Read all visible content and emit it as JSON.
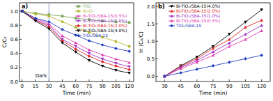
{
  "chart_data": [
    {
      "type": "line",
      "title": "a)",
      "xlabel": "Time (min)",
      "ylabel": "C/C₀",
      "x": [
        0,
        15,
        30,
        45,
        60,
        75,
        90,
        105,
        120
      ],
      "xlim": [
        -3,
        125
      ],
      "xticks": [
        0,
        15,
        30,
        45,
        60,
        75,
        90,
        105,
        120
      ],
      "ylim": [
        0,
        1.12
      ],
      "yticks": [
        {
          "value": 0,
          "label": "0.0"
        },
        0.2,
        0.4,
        0.6,
        0.8,
        {
          "value": 1,
          "label": "1.0"
        }
      ],
      "legend": "upper right",
      "annotations": [
        {
          "text": "Dark",
          "x": 30
        }
      ],
      "series": [
        {
          "name": "TiO₂",
          "color": "#7fa860",
          "marker": "square",
          "line_style": "solid",
          "values": [
            1.0,
            0.97,
            0.95,
            0.93,
            0.9,
            0.88,
            0.86,
            0.85,
            0.84
          ]
        },
        {
          "name": "Bi₂O₃",
          "color": "#b5b832",
          "marker": "circle",
          "line_style": "solid",
          "values": [
            1.0,
            0.96,
            0.93,
            0.85,
            0.77,
            0.7,
            0.63,
            0.57,
            0.5
          ]
        },
        {
          "name": "Bi-TiO₂/SBA-15(0.5%)",
          "color": "#e040b0",
          "marker": "triangle",
          "line_style": "solid",
          "values": [
            1.0,
            0.9,
            0.82,
            0.65,
            0.55,
            0.45,
            0.38,
            0.32,
            0.27
          ]
        },
        {
          "name": "Bi-TiO₂/SBA-15(1.0%)",
          "color": "#9b30c8",
          "marker": "triangle-down",
          "line_style": "solid",
          "values": [
            1.0,
            0.88,
            0.8,
            0.6,
            0.5,
            0.4,
            0.32,
            0.26,
            0.21
          ]
        },
        {
          "name": "Bi-TiO₂/SBA-15(2.0%)",
          "color": "#e02020",
          "marker": "diamond",
          "line_style": "solid",
          "values": [
            1.0,
            0.87,
            0.78,
            0.58,
            0.46,
            0.36,
            0.28,
            0.22,
            0.17
          ]
        },
        {
          "name": "Bi-TiO₂/SBA-15(4.0%)",
          "color": "#000000",
          "marker": "triangle-down",
          "line_style": "solid",
          "values": [
            1.0,
            0.86,
            0.75,
            0.55,
            0.42,
            0.3,
            0.22,
            0.16,
            0.12
          ]
        },
        {
          "name": "TiO₂/SBA-15",
          "color": "#1f3fbf",
          "marker": "diamond",
          "line_style": "solid",
          "values": [
            1.0,
            0.9,
            0.85,
            0.74,
            0.66,
            0.58,
            0.52,
            0.47,
            0.43
          ]
        }
      ]
    },
    {
      "type": "scatter",
      "title": "b)",
      "xlabel": "Time (min)",
      "ylabel": "ln (C₀/C)",
      "x": [
        30,
        45,
        60,
        75,
        90,
        105,
        120
      ],
      "xlim": [
        22,
        128
      ],
      "xticks": [
        30,
        45,
        60,
        75,
        90,
        105,
        120
      ],
      "ylim": [
        -0.15,
        2.1
      ],
      "yticks": [
        {
          "value": 0,
          "label": "0.0"
        },
        0.5,
        {
          "value": 1,
          "label": "1.0"
        },
        1.5,
        {
          "value": 2,
          "label": "2.0"
        }
      ],
      "legend": "upper left",
      "series": [
        {
          "name": "Bi-TiO₂/SBA-15(4.0%)",
          "color": "#000000",
          "marker": "triangle-down",
          "line_style": "solid",
          "values": [
            0,
            0.3,
            0.55,
            0.85,
            1.2,
            1.55,
            1.9
          ]
        },
        {
          "name": "Bi-TiO₂/SBA-15(2.0%)",
          "color": "#e02020",
          "marker": "triangle",
          "line_style": "solid",
          "values": [
            0,
            0.28,
            0.5,
            0.8,
            1.05,
            1.4,
            1.6
          ]
        },
        {
          "name": "Bi-TiO₂/SBA-15(1.0%)",
          "color": "#9b30c8",
          "marker": "triangle",
          "line_style": "solid",
          "values": [
            0,
            0.25,
            0.45,
            0.7,
            0.95,
            1.2,
            1.45
          ]
        },
        {
          "name": "Bi-TiO₂/SBA-15(0.5%)",
          "color": "#e040b0",
          "marker": "triangle",
          "line_style": "solid",
          "values": [
            0,
            0.22,
            0.4,
            0.6,
            0.85,
            1.05,
            1.3
          ]
        },
        {
          "name": "TiO₂/SBA-15",
          "color": "#1f3fbf",
          "marker": "diamond",
          "line_style": "solid",
          "values": [
            0,
            0.1,
            0.2,
            0.3,
            0.4,
            0.5,
            0.6
          ]
        }
      ]
    }
  ]
}
